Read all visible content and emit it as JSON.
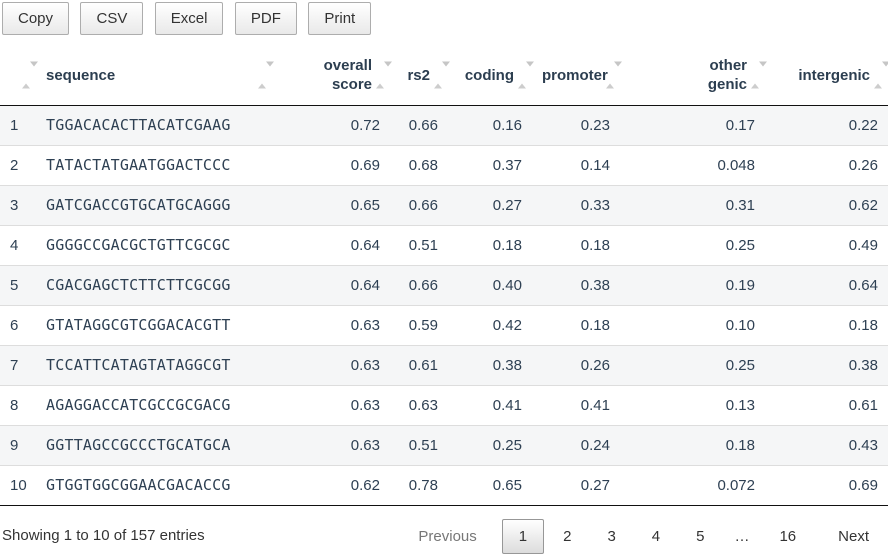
{
  "toolbar": {
    "buttons": [
      {
        "label": "Copy"
      },
      {
        "label": "CSV"
      },
      {
        "label": "Excel"
      },
      {
        "label": "PDF"
      },
      {
        "label": "Print"
      }
    ]
  },
  "table": {
    "columns": [
      {
        "label": "",
        "align": "left"
      },
      {
        "label": "sequence",
        "align": "left"
      },
      {
        "label": "overall\nscore",
        "align": "right"
      },
      {
        "label": "rs2",
        "align": "right"
      },
      {
        "label": "coding",
        "align": "right"
      },
      {
        "label": "promoter",
        "align": "right"
      },
      {
        "label": "other\ngenic",
        "align": "right"
      },
      {
        "label": "intergenic",
        "align": "right"
      }
    ],
    "rows": [
      {
        "index": "1",
        "sequence": "TGGACACACTTACATCGAAG",
        "overall_score": "0.72",
        "rs2": "0.66",
        "coding": "0.16",
        "promoter": "0.23",
        "other_genic": "0.17",
        "intergenic": "0.22"
      },
      {
        "index": "2",
        "sequence": "TATACTATGAATGGACTCCC",
        "overall_score": "0.69",
        "rs2": "0.68",
        "coding": "0.37",
        "promoter": "0.14",
        "other_genic": "0.048",
        "intergenic": "0.26"
      },
      {
        "index": "3",
        "sequence": "GATCGACCGTGCATGCAGGG",
        "overall_score": "0.65",
        "rs2": "0.66",
        "coding": "0.27",
        "promoter": "0.33",
        "other_genic": "0.31",
        "intergenic": "0.62"
      },
      {
        "index": "4",
        "sequence": "GGGGCCGACGCTGTTCGCGC",
        "overall_score": "0.64",
        "rs2": "0.51",
        "coding": "0.18",
        "promoter": "0.18",
        "other_genic": "0.25",
        "intergenic": "0.49"
      },
      {
        "index": "5",
        "sequence": "CGACGAGCTCTTCTTCGCGG",
        "overall_score": "0.64",
        "rs2": "0.66",
        "coding": "0.40",
        "promoter": "0.38",
        "other_genic": "0.19",
        "intergenic": "0.64"
      },
      {
        "index": "6",
        "sequence": "GTATAGGCGTCGGACACGTT",
        "overall_score": "0.63",
        "rs2": "0.59",
        "coding": "0.42",
        "promoter": "0.18",
        "other_genic": "0.10",
        "intergenic": "0.18"
      },
      {
        "index": "7",
        "sequence": "TCCATTCATAGTATAGGCGT",
        "overall_score": "0.63",
        "rs2": "0.61",
        "coding": "0.38",
        "promoter": "0.26",
        "other_genic": "0.25",
        "intergenic": "0.38"
      },
      {
        "index": "8",
        "sequence": "AGAGGACCATCGCCGCGACG",
        "overall_score": "0.63",
        "rs2": "0.63",
        "coding": "0.41",
        "promoter": "0.41",
        "other_genic": "0.13",
        "intergenic": "0.61"
      },
      {
        "index": "9",
        "sequence": "GGTTAGCCGCCCTGCATGCA",
        "overall_score": "0.63",
        "rs2": "0.51",
        "coding": "0.25",
        "promoter": "0.24",
        "other_genic": "0.18",
        "intergenic": "0.43"
      },
      {
        "index": "10",
        "sequence": "GTGGTGGCGGAACGACACCG",
        "overall_score": "0.62",
        "rs2": "0.78",
        "coding": "0.65",
        "promoter": "0.27",
        "other_genic": "0.072",
        "intergenic": "0.69"
      }
    ]
  },
  "footer": {
    "info": "Showing 1 to 10 of 157 entries",
    "pagination": {
      "previous_label": "Previous",
      "next_label": "Next",
      "current_page": "1",
      "pages": [
        {
          "label": "1",
          "active": true
        },
        {
          "label": "2"
        },
        {
          "label": "3"
        },
        {
          "label": "4"
        },
        {
          "label": "5"
        },
        {
          "label": "…",
          "ellipsis": true
        },
        {
          "label": "16"
        }
      ]
    }
  },
  "colors": {
    "header_text": "#2c3e50",
    "body_text": "#2e4053",
    "dark_border": "#111111",
    "row_divider": "#dddddd",
    "stripe_row_bg": "#f5f6f7",
    "button_border": "#adadad",
    "button_gradient_end": "#e9e9e9",
    "current_page_border": "#979797",
    "current_page_gradient_end": "#dcdcdc",
    "disabled_text": "#777777",
    "sort_arrow": "#cdcdcd"
  }
}
